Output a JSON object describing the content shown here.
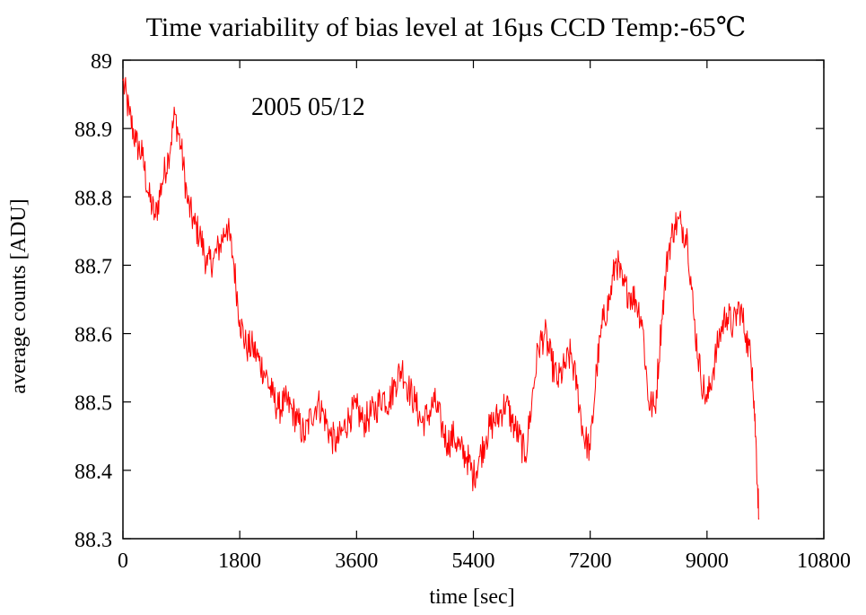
{
  "chart_data": {
    "type": "line",
    "title": "Time variability of bias level  at 16µs  CCD Temp:-65℃",
    "xlabel": "time [sec]",
    "ylabel": "average counts [ADU]",
    "annotation": "2005 05/12",
    "xlim": [
      0,
      10800
    ],
    "ylim": [
      88.3,
      89.0
    ],
    "xticks": [
      "0",
      "1800",
      "3600",
      "5400",
      "7200",
      "9000",
      "10800"
    ],
    "yticks": [
      "88.3",
      "88.4",
      "88.5",
      "88.6",
      "88.7",
      "88.8",
      "88.9",
      "89"
    ],
    "grid": false,
    "line_color": "#ff0000",
    "series": [
      {
        "name": "",
        "x": [
          0,
          100,
          200,
          300,
          400,
          500,
          600,
          700,
          800,
          900,
          1000,
          1100,
          1200,
          1300,
          1400,
          1500,
          1600,
          1700,
          1800,
          1900,
          2000,
          2100,
          2200,
          2300,
          2400,
          2500,
          2600,
          2700,
          2800,
          2900,
          3000,
          3100,
          3200,
          3300,
          3400,
          3500,
          3600,
          3700,
          3800,
          3900,
          4000,
          4100,
          4200,
          4300,
          4400,
          4500,
          4600,
          4700,
          4800,
          4900,
          5000,
          5100,
          5200,
          5300,
          5400,
          5500,
          5600,
          5700,
          5800,
          5900,
          6000,
          6100,
          6200,
          6300,
          6400,
          6500,
          6600,
          6700,
          6800,
          6900,
          7000,
          7100,
          7200,
          7300,
          7400,
          7500,
          7600,
          7700,
          7800,
          7900,
          8000,
          8100,
          8200,
          8300,
          8400,
          8500,
          8600,
          8700,
          8800,
          8900,
          9000,
          9100,
          9200,
          9300,
          9400,
          9500,
          9600,
          9700,
          9750,
          9800
        ],
        "y": [
          88.97,
          88.92,
          88.88,
          88.86,
          88.8,
          88.77,
          88.82,
          88.86,
          88.92,
          88.87,
          88.79,
          88.76,
          88.74,
          88.7,
          88.71,
          88.73,
          88.76,
          88.71,
          88.62,
          88.58,
          88.58,
          88.56,
          88.54,
          88.51,
          88.49,
          88.5,
          88.49,
          88.47,
          88.45,
          88.48,
          88.5,
          88.48,
          88.45,
          88.44,
          88.46,
          88.48,
          88.49,
          88.47,
          88.48,
          88.49,
          88.51,
          88.5,
          88.53,
          88.55,
          88.52,
          88.5,
          88.47,
          88.48,
          88.5,
          88.47,
          88.44,
          88.45,
          88.43,
          88.42,
          88.39,
          88.42,
          88.45,
          88.47,
          88.48,
          88.5,
          88.47,
          88.45,
          88.42,
          88.5,
          88.58,
          88.6,
          88.56,
          88.53,
          88.55,
          88.57,
          88.52,
          88.45,
          88.43,
          88.55,
          88.62,
          88.65,
          88.71,
          88.67,
          88.66,
          88.65,
          88.62,
          88.5,
          88.49,
          88.62,
          88.72,
          88.76,
          88.76,
          88.74,
          88.62,
          88.54,
          88.5,
          88.55,
          88.6,
          88.63,
          88.61,
          88.64,
          88.6,
          88.55,
          88.45,
          88.33
        ]
      }
    ]
  }
}
